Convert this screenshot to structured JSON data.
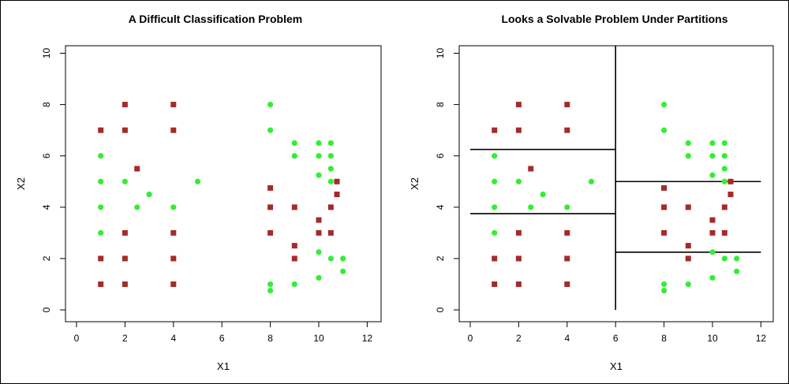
{
  "chart_data": [
    {
      "type": "scatter",
      "title": "A Difficult Classification Problem",
      "xlabel": "X1",
      "ylabel": "X2",
      "xlim": [
        0,
        12
      ],
      "ylim": [
        0,
        10
      ],
      "x_ticks": [
        "0",
        "2",
        "4",
        "6",
        "8",
        "10",
        "12"
      ],
      "y_ticks": [
        "0",
        "2",
        "4",
        "6",
        "8",
        "10"
      ],
      "grid": false,
      "series": [
        {
          "color": "#a52a2a",
          "marker": "square",
          "points": [
            [
              1,
              7
            ],
            [
              1,
              2
            ],
            [
              1,
              1
            ],
            [
              2,
              8
            ],
            [
              2,
              7
            ],
            [
              2,
              3
            ],
            [
              2,
              2
            ],
            [
              2,
              1
            ],
            [
              2.5,
              5.5
            ],
            [
              4,
              8
            ],
            [
              4,
              7
            ],
            [
              4,
              3
            ],
            [
              4,
              2
            ],
            [
              4,
              1
            ],
            [
              8,
              4.75
            ],
            [
              8,
              4
            ],
            [
              8,
              3
            ],
            [
              9,
              4
            ],
            [
              9,
              2.5
            ],
            [
              9,
              2
            ],
            [
              10,
              3.5
            ],
            [
              10,
              3
            ],
            [
              10.5,
              4
            ],
            [
              10.5,
              3
            ],
            [
              10.75,
              5
            ],
            [
              10.75,
              4.5
            ]
          ]
        },
        {
          "color": "#33ee33",
          "marker": "circle",
          "points": [
            [
              1,
              6
            ],
            [
              1,
              5
            ],
            [
              1,
              4
            ],
            [
              1,
              3
            ],
            [
              2,
              5
            ],
            [
              2.5,
              4
            ],
            [
              3,
              4.5
            ],
            [
              4,
              4
            ],
            [
              5,
              5
            ],
            [
              8,
              8
            ],
            [
              8,
              7
            ],
            [
              8,
              1
            ],
            [
              8,
              0.75
            ],
            [
              9,
              6.5
            ],
            [
              9,
              6
            ],
            [
              9,
              1
            ],
            [
              10,
              6.5
            ],
            [
              10,
              6
            ],
            [
              10,
              5.25
            ],
            [
              10,
              2.25
            ],
            [
              10,
              1.25
            ],
            [
              10.5,
              6.5
            ],
            [
              10.5,
              6
            ],
            [
              10.5,
              5.5
            ],
            [
              10.5,
              5
            ],
            [
              10.5,
              2
            ],
            [
              11,
              2
            ],
            [
              11,
              1.5
            ]
          ]
        }
      ]
    },
    {
      "type": "scatter",
      "title": "Looks a Solvable Problem Under Partitions",
      "xlabel": "X1",
      "ylabel": "X2",
      "xlim": [
        0,
        12
      ],
      "ylim": [
        0,
        10
      ],
      "x_ticks": [
        "0",
        "2",
        "4",
        "6",
        "8",
        "10",
        "12"
      ],
      "y_ticks": [
        "0",
        "2",
        "4",
        "6",
        "8",
        "10"
      ],
      "grid": false,
      "series": [
        {
          "color": "#a52a2a",
          "marker": "square",
          "points": [
            [
              1,
              7
            ],
            [
              1,
              2
            ],
            [
              1,
              1
            ],
            [
              2,
              8
            ],
            [
              2,
              7
            ],
            [
              2,
              3
            ],
            [
              2,
              2
            ],
            [
              2,
              1
            ],
            [
              2.5,
              5.5
            ],
            [
              4,
              8
            ],
            [
              4,
              7
            ],
            [
              4,
              3
            ],
            [
              4,
              2
            ],
            [
              4,
              1
            ],
            [
              8,
              4.75
            ],
            [
              8,
              4
            ],
            [
              8,
              3
            ],
            [
              9,
              4
            ],
            [
              9,
              2.5
            ],
            [
              9,
              2
            ],
            [
              10,
              3.5
            ],
            [
              10,
              3
            ],
            [
              10.5,
              4
            ],
            [
              10.5,
              3
            ],
            [
              10.75,
              5
            ],
            [
              10.75,
              4.5
            ]
          ]
        },
        {
          "color": "#33ee33",
          "marker": "circle",
          "points": [
            [
              1,
              6
            ],
            [
              1,
              5
            ],
            [
              1,
              4
            ],
            [
              1,
              3
            ],
            [
              2,
              5
            ],
            [
              2.5,
              4
            ],
            [
              3,
              4.5
            ],
            [
              4,
              4
            ],
            [
              5,
              5
            ],
            [
              8,
              8
            ],
            [
              8,
              7
            ],
            [
              8,
              1
            ],
            [
              8,
              0.75
            ],
            [
              9,
              6.5
            ],
            [
              9,
              6
            ],
            [
              9,
              1
            ],
            [
              10,
              6.5
            ],
            [
              10,
              6
            ],
            [
              10,
              5.25
            ],
            [
              10,
              2.25
            ],
            [
              10,
              1.25
            ],
            [
              10.5,
              6.5
            ],
            [
              10.5,
              6
            ],
            [
              10.5,
              5.5
            ],
            [
              10.5,
              5
            ],
            [
              10.5,
              2
            ],
            [
              11,
              2
            ],
            [
              11,
              1.5
            ]
          ]
        }
      ],
      "partition_lines": [
        {
          "x1": 6,
          "y1": 0,
          "x2": 6,
          "y2": 10.5
        },
        {
          "x1": 0,
          "y1": 6.25,
          "x2": 6,
          "y2": 6.25
        },
        {
          "x1": 0,
          "y1": 3.75,
          "x2": 6,
          "y2": 3.75
        },
        {
          "x1": 6,
          "y1": 5,
          "x2": 12,
          "y2": 5
        },
        {
          "x1": 6,
          "y1": 2.25,
          "x2": 12,
          "y2": 2.25
        }
      ]
    }
  ]
}
